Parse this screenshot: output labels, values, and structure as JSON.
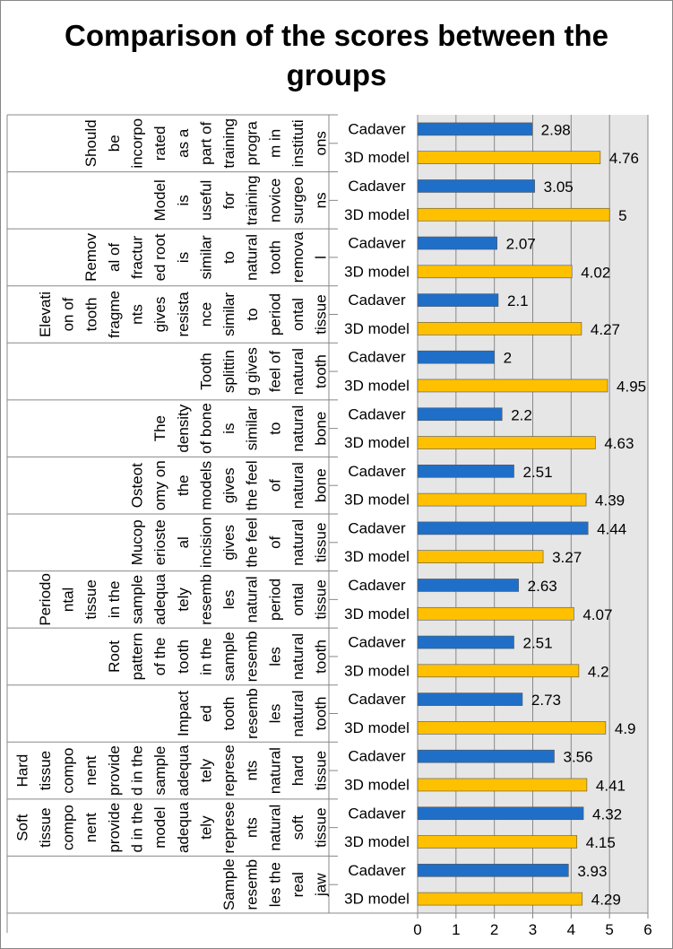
{
  "chart_data": {
    "type": "bar",
    "orientation": "horizontal",
    "title": "Comparison of the scores between the groups",
    "xlim": [
      0,
      6
    ],
    "xticks": [
      0,
      1,
      2,
      3,
      4,
      5,
      6
    ],
    "series_names": [
      "Cadaver",
      "3D model"
    ],
    "colors": {
      "Cadaver": "#1f6fc8",
      "3D model": "#ffc000",
      "plot_bg": "#e6e6e6",
      "grid": "#888888"
    },
    "groups": [
      {
        "lines": [
          "Should",
          "be",
          "incorpo",
          "rated",
          "as a",
          "part of",
          "training",
          "progra",
          "m in",
          "instituti",
          "ons"
        ],
        "label": "Should be incorporated as a part of training program in institutions",
        "cadaver": 2.98,
        "model": 4.76
      },
      {
        "lines": [
          "Model",
          "is",
          "useful",
          "for",
          "training",
          "novice",
          "surgeo",
          "ns"
        ],
        "label": "Model is useful for training novice surgeons",
        "cadaver": 3.05,
        "model": 5
      },
      {
        "lines": [
          "Remov",
          "al of",
          "fractur",
          "ed root",
          "is",
          "similar",
          "to",
          "natural",
          "tooth",
          "remova",
          "l"
        ],
        "label": "Removal of fractured root is similar to natural tooth removal",
        "cadaver": 2.07,
        "model": 4.02
      },
      {
        "lines": [
          "Elevati",
          "on of",
          "tooth",
          "fragme",
          "nts",
          "gives",
          "resista",
          "nce",
          "similar",
          "to",
          "period",
          "ontal",
          "tissue"
        ],
        "label": "Elevation of tooth fragments gives resistance similar to periodontal tissue",
        "cadaver": 2.1,
        "model": 4.27
      },
      {
        "lines": [
          "Tooth",
          "splittin",
          "g gives",
          "feel of",
          "natural",
          "tooth"
        ],
        "label": "Tooth splitting gives feel of natural tooth",
        "cadaver": 2,
        "model": 4.95
      },
      {
        "lines": [
          "The",
          "density",
          "of bone",
          "is",
          "similar",
          "to",
          "natural",
          "bone"
        ],
        "label": "The density of bone is similar to natural bone",
        "cadaver": 2.2,
        "model": 4.63
      },
      {
        "lines": [
          "Osteot",
          "omy on",
          "the",
          "models",
          "gives",
          "the feel",
          "of",
          "natural",
          "bone"
        ],
        "label": "Osteotomy on the models gives the feel of natural bone",
        "cadaver": 2.51,
        "model": 4.39
      },
      {
        "lines": [
          "Mucop",
          "erioste",
          "al",
          "incision",
          "gives",
          "the feel",
          "of",
          "natural",
          "tissue"
        ],
        "label": "Mucoperiosteal incision gives the feel of natural tissue",
        "cadaver": 4.44,
        "model": 3.27
      },
      {
        "lines": [
          "Periodo",
          "ntal",
          "tissue",
          "in the",
          "sample",
          "adequa",
          "tely",
          "resemb",
          "les",
          "natural",
          "period",
          "ontal",
          "tissue"
        ],
        "label": "Periodontal tissue in the sample adequately resembles natural periodontal tissue",
        "cadaver": 2.63,
        "model": 4.07
      },
      {
        "lines": [
          "Root",
          "pattern",
          "of the",
          "tooth",
          "in the",
          "sample",
          "resemb",
          "les",
          "natural",
          "tooth"
        ],
        "label": "Root pattern of the tooth in the sample resembles natural tooth",
        "cadaver": 2.51,
        "model": 4.2
      },
      {
        "lines": [
          "Impact",
          "ed",
          "tooth",
          "resemb",
          "les",
          "natural",
          "tooth"
        ],
        "label": "Impacted tooth resembles natural tooth",
        "cadaver": 2.73,
        "model": 4.9
      },
      {
        "lines": [
          "Hard",
          "tissue",
          "compo",
          "nent",
          "provide",
          "d in the",
          "sample",
          "adequa",
          "tely",
          "represe",
          "nts",
          "natural",
          "hard",
          "tissue"
        ],
        "label": "Hard tissue component provided in the sample adequately represents natural hard tissue",
        "cadaver": 3.56,
        "model": 4.41
      },
      {
        "lines": [
          "Soft",
          "tissue",
          "compo",
          "nent",
          "provide",
          "d in the",
          "model",
          "adequa",
          "tely",
          "represe",
          "nts",
          "natural",
          "soft",
          "tissue"
        ],
        "label": "Soft tissue component provided in the model adequately represents natural soft tissue",
        "cadaver": 4.32,
        "model": 4.15
      },
      {
        "lines": [
          "Sample",
          "resemb",
          "les the",
          "real",
          "jaw"
        ],
        "label": "Sample resembles the real jaw",
        "cadaver": 3.93,
        "model": 4.29
      }
    ]
  }
}
